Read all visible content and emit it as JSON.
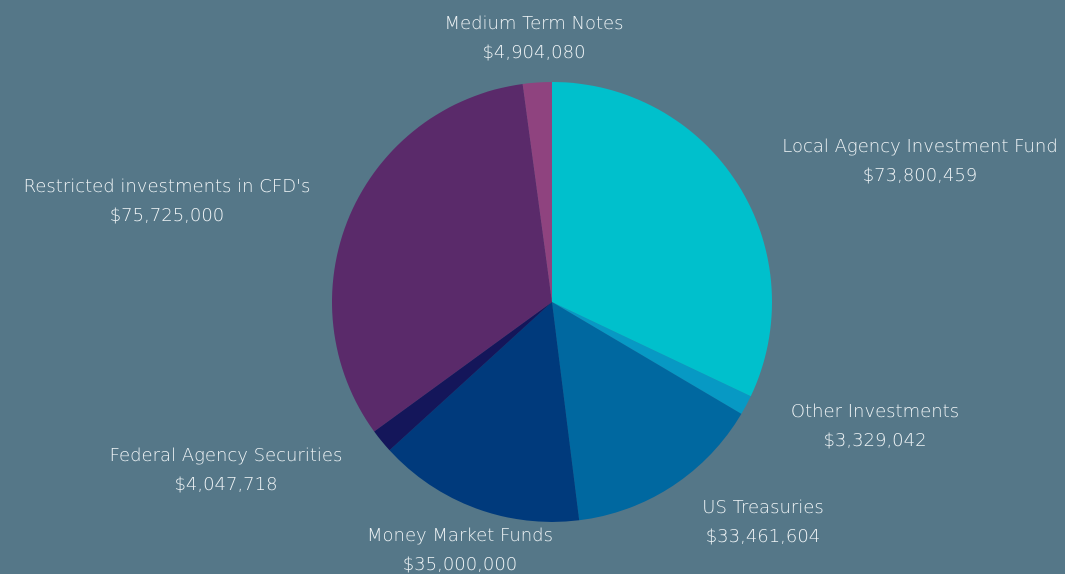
{
  "chart_data": {
    "type": "pie",
    "categories": [
      "Local Agency Investment Fund",
      "Other Investments",
      "US Treasuries",
      "Money Market Funds",
      "Federal Agency Securities",
      "Restricted investments in CFD's",
      "Medium Term Notes"
    ],
    "values": [
      73800459,
      3329042,
      33461604,
      35000000,
      4047718,
      75725000,
      4904080
    ],
    "value_labels": [
      "$73,800,459",
      "$3,329,042",
      "$33,461,604",
      "$35,000,000",
      "$4,047,718",
      "$75,725,000",
      "$4,904,080"
    ],
    "colors": [
      "#00c0cc",
      "#0799c4",
      "#0068a0",
      "#003a7c",
      "#14165a",
      "#5a2a6a",
      "#8f437f"
    ]
  }
}
